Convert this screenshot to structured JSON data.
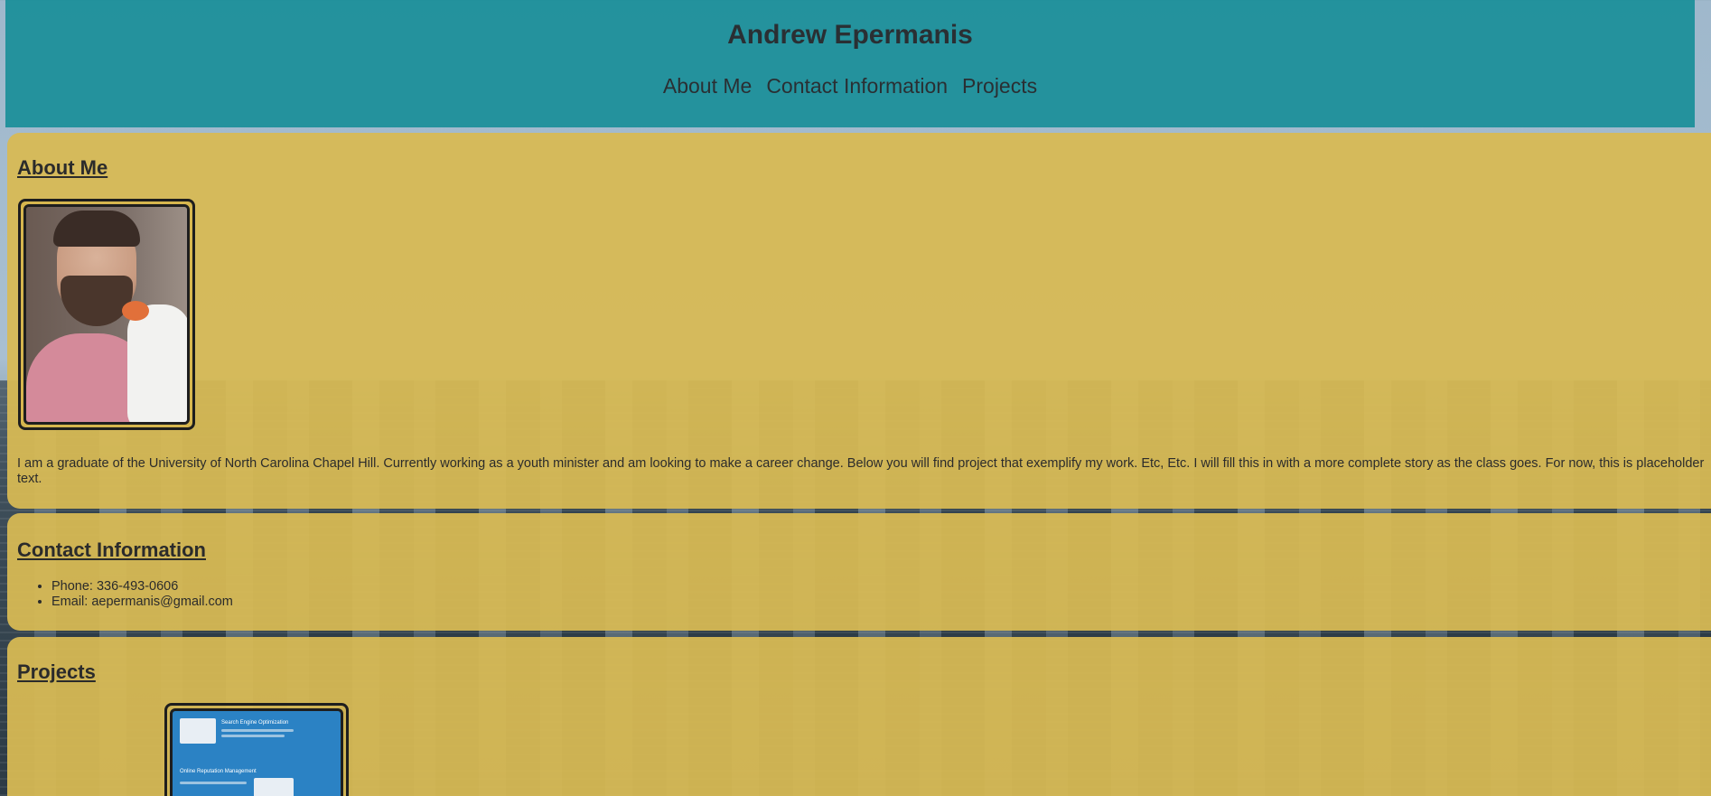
{
  "header": {
    "title": "Andrew Epermanis",
    "nav": [
      "About Me",
      "Contact Information",
      "Projects"
    ]
  },
  "about": {
    "heading": "About Me",
    "text": "I am a graduate of the University of North Carolina Chapel Hill. Currently working as a youth minister and am looking to make a career change. Below you will find project that exemplify my work. Etc, Etc. I will fill this in with a more complete story as the class goes. For now, this is placeholder text."
  },
  "contact": {
    "heading": "Contact Information",
    "items": [
      "Phone: 336-493-0606",
      "Email: aepermanis@gmail.com"
    ]
  },
  "projects": {
    "heading": "Projects",
    "thumbnail_labels": [
      "Search Engine Optimization",
      "Online Reputation Management"
    ]
  },
  "colors": {
    "header_bg": "#128c96",
    "panel_bg": "#d8ba54",
    "text": "#2b2b2b"
  }
}
